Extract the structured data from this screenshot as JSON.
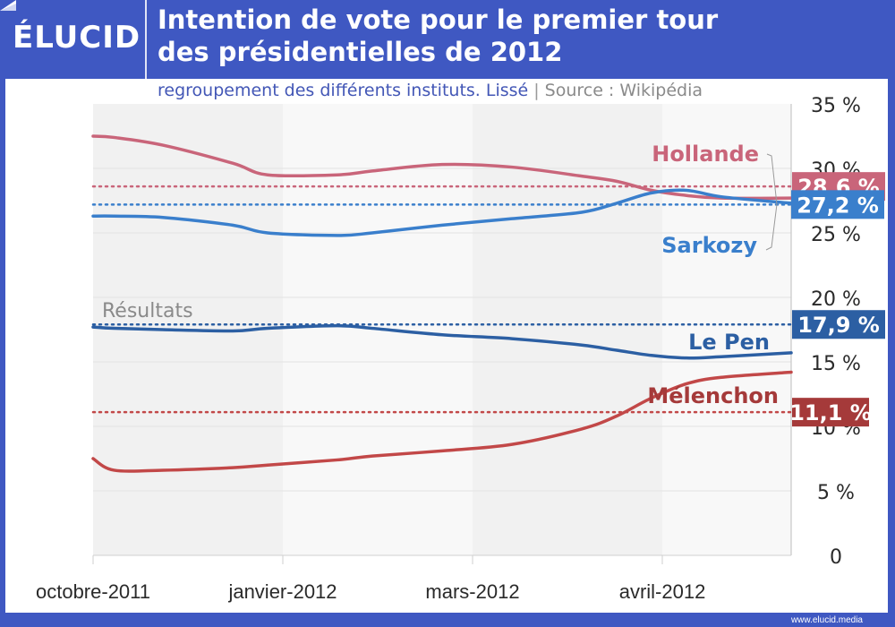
{
  "brand": {
    "logo": "ÉLUCID",
    "footer_url": "www.elucid.media"
  },
  "header": {
    "title_line1": "Intention de vote pour le premier tour",
    "title_line2": "des présidentielles de 2012",
    "subtitle": "regroupement des différents instituts. Lissé",
    "separator": "|",
    "source": "Source : Wikipédia"
  },
  "chart_data": {
    "type": "line",
    "title": "Intention de vote pour le premier tour des présidentielles de 2012",
    "subtitle": "regroupement des différents instituts. Lissé | Source : Wikipédia",
    "xlabel": "",
    "ylabel": "",
    "x_ticks": [
      "octobre-2011",
      "janvier-2012",
      "mars-2012",
      "avril-2012"
    ],
    "y_ticks": [
      "0",
      "5 %",
      "10 %",
      "15 %",
      "20 %",
      "25 %",
      "30 %",
      "35 %"
    ],
    "ylim": [
      0,
      35
    ],
    "grid": true,
    "x": [
      0,
      0.03,
      0.1,
      0.2,
      0.25,
      0.35,
      0.4,
      0.5,
      0.6,
      0.7,
      0.75,
      0.8,
      0.85,
      0.9,
      1.0
    ],
    "series": [
      {
        "name": "Hollande",
        "color": "#c9657a",
        "result": 28.6,
        "result_label": "28,6 %",
        "values": [
          32.5,
          32.4,
          31.8,
          30.4,
          29.5,
          29.5,
          29.8,
          30.3,
          30.1,
          29.4,
          29.0,
          28.3,
          27.9,
          27.7,
          27.7
        ]
      },
      {
        "name": "Sarkozy",
        "color": "#3a7fcc",
        "result": 27.2,
        "result_label": "27,2 %",
        "values": [
          26.3,
          26.3,
          26.2,
          25.6,
          25.0,
          24.8,
          25.0,
          25.6,
          26.1,
          26.6,
          27.3,
          28.1,
          28.3,
          27.8,
          27.3
        ]
      },
      {
        "name": "Le Pen",
        "color": "#2c5fa3",
        "result": 17.9,
        "result_label": "17,9 %",
        "values": [
          17.7,
          17.6,
          17.5,
          17.4,
          17.6,
          17.8,
          17.6,
          17.1,
          16.8,
          16.3,
          15.9,
          15.5,
          15.3,
          15.4,
          15.7
        ]
      },
      {
        "name": "Mélenchon",
        "color": "#c24848",
        "result": 11.1,
        "result_label": "11,1 %",
        "values": [
          7.5,
          6.6,
          6.6,
          6.8,
          7.0,
          7.4,
          7.7,
          8.1,
          8.6,
          9.8,
          10.8,
          12.2,
          13.3,
          13.8,
          14.2
        ]
      }
    ],
    "annotation": "Résultats",
    "legend": "inline-right"
  }
}
